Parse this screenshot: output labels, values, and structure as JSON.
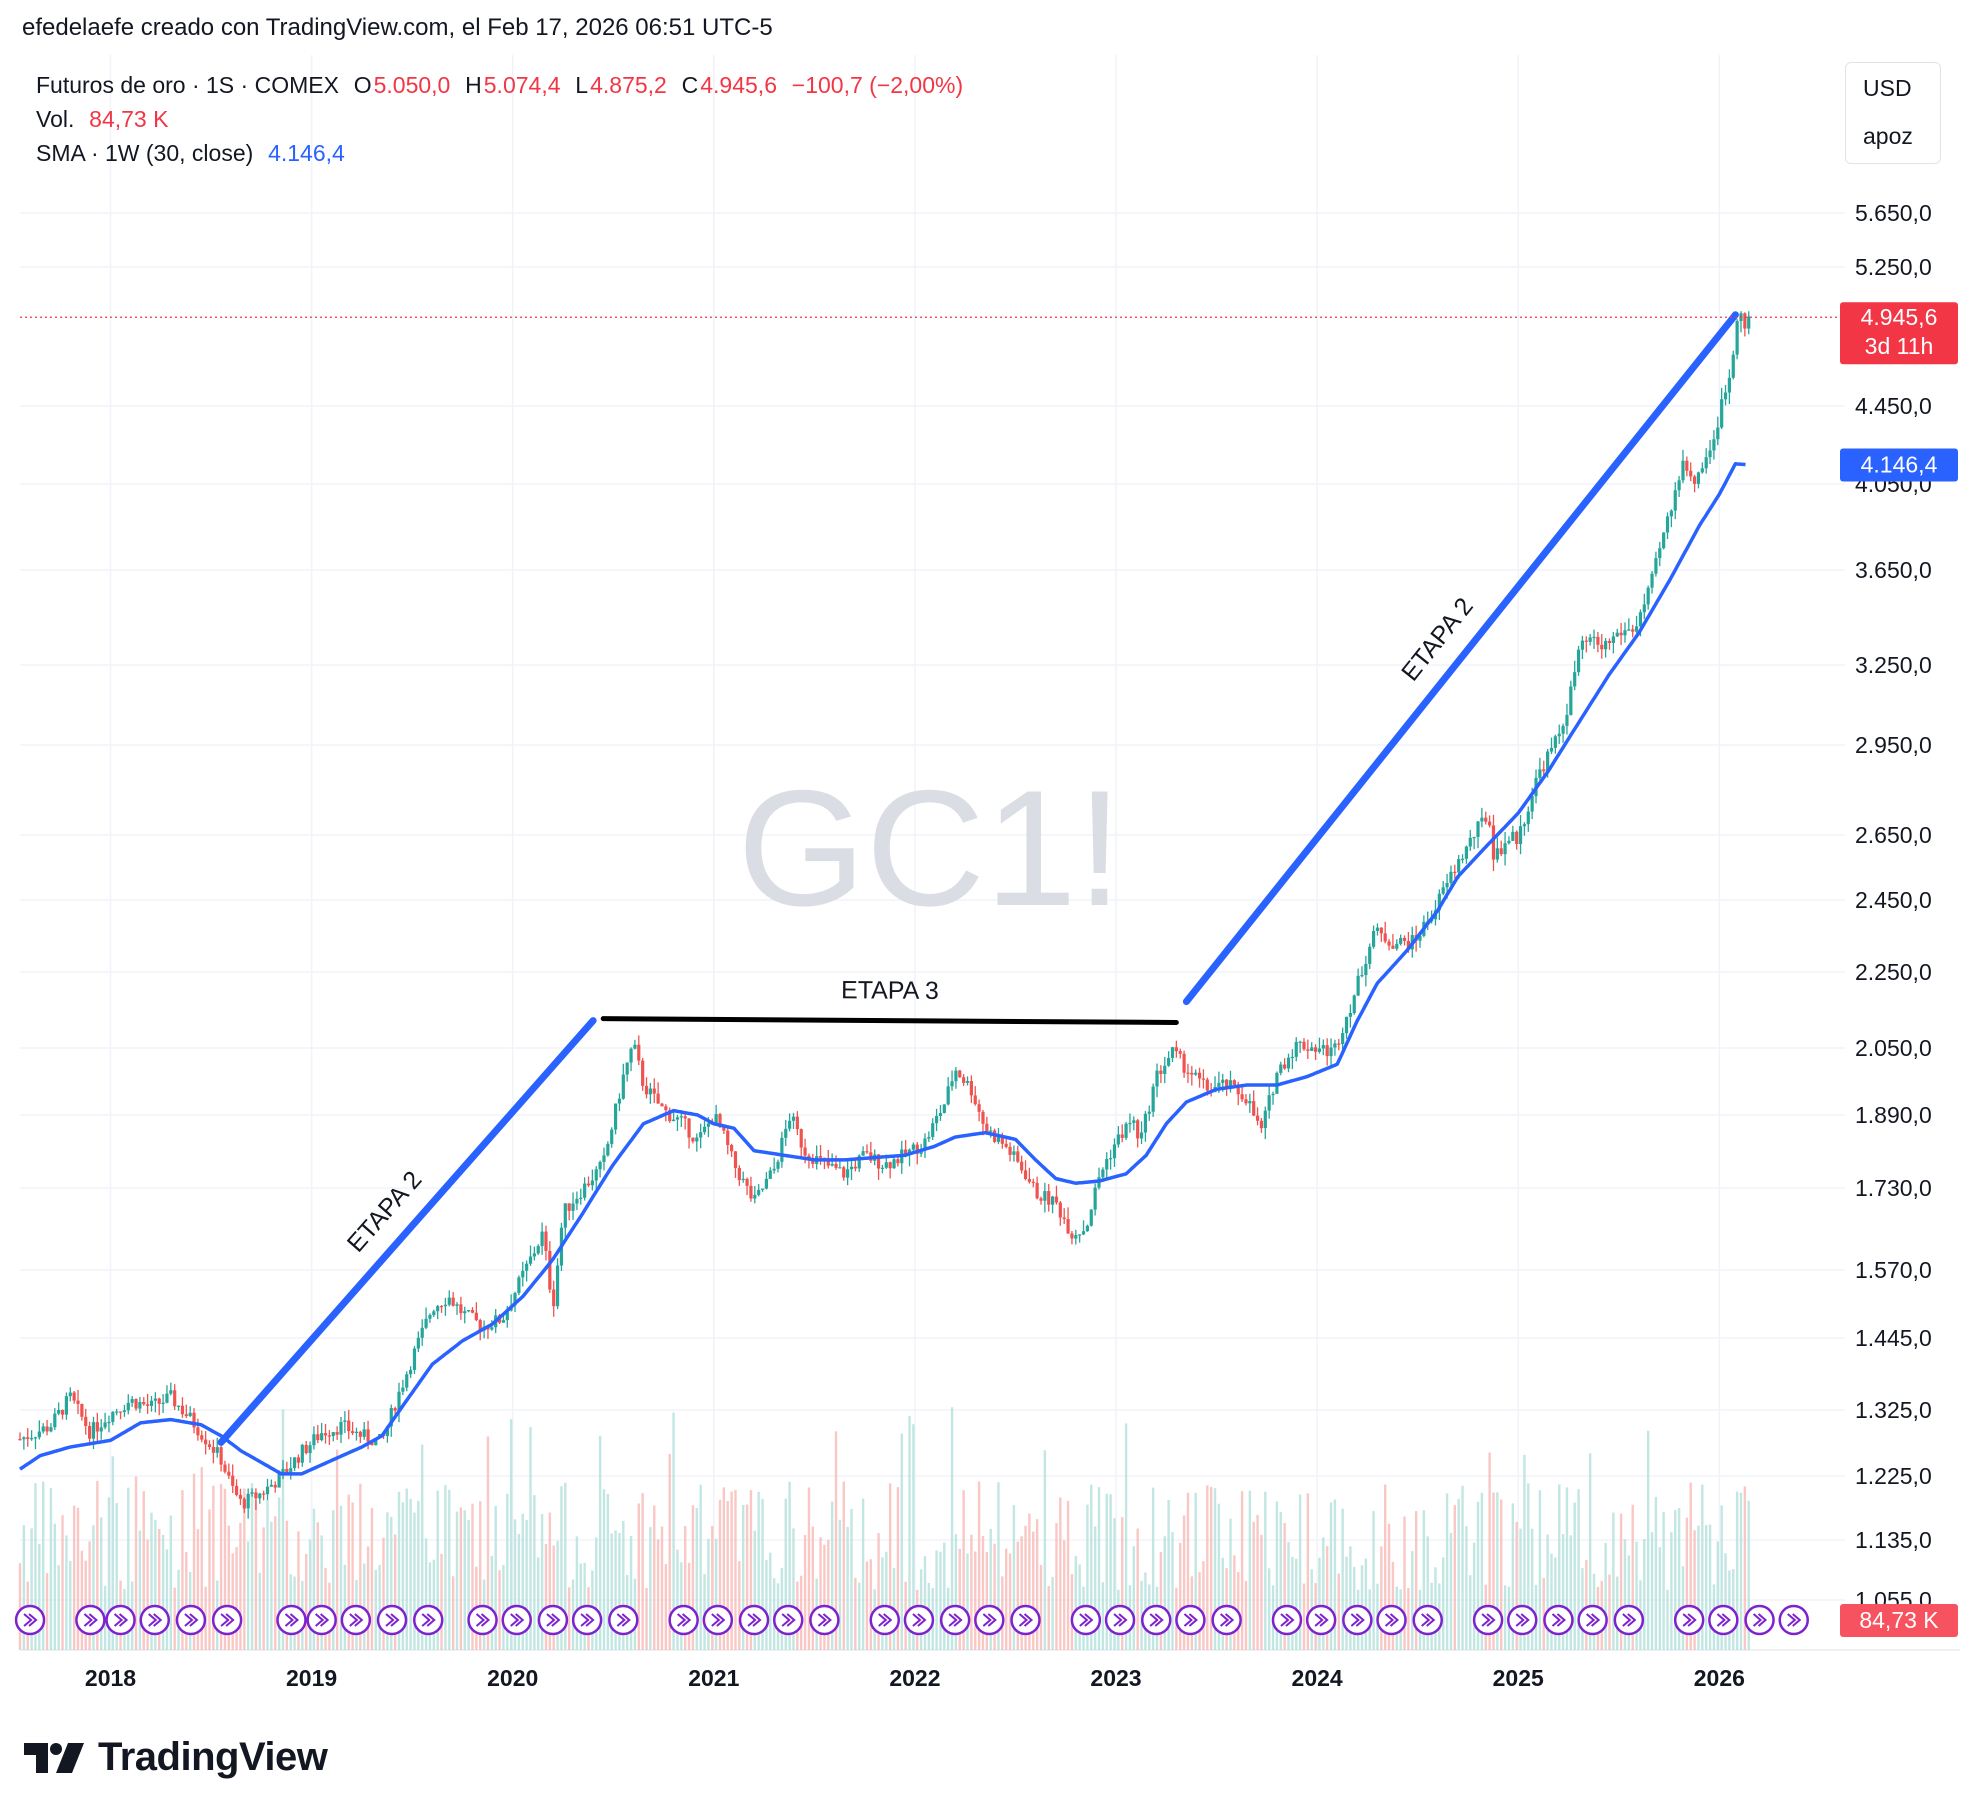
{
  "header": {
    "text": "efedelaefe creado con TradingView.com, el Feb 17, 2026 06:51 UTC-5"
  },
  "legend": {
    "symbol": "Futuros de oro · 1S · COMEX",
    "o_label": "O",
    "o_value": "5.050,0",
    "h_label": "H",
    "h_value": "5.074,4",
    "l_label": "L",
    "l_value": "4.875,2",
    "c_label": "C",
    "c_value": "4.945,6",
    "change": "−100,7 (−2,00%)",
    "vol_label": "Vol.",
    "vol_value": "84,73 K",
    "sma_label": "SMA · 1W (30, close)",
    "sma_value": "4.146,4"
  },
  "currency_box": {
    "currency": "USD",
    "mode": "apoz"
  },
  "watermark": "GC1!",
  "footer": {
    "brand": "TradingView"
  },
  "colors": {
    "up": "#26a69a",
    "down": "#ef5350",
    "sma": "#2962ff",
    "price_tag": "#f23645",
    "sma_tag": "#2962ff",
    "annotation_blue": "#2962ff",
    "annotation_black": "#000000",
    "event_icon": "#7e22ce"
  },
  "price_tag": {
    "value": "4.945,6",
    "countdown": "3d 11h"
  },
  "sma_tag": {
    "value": "4.146,4"
  },
  "vol_tag": {
    "value": "84,73 K"
  },
  "chart_data": {
    "type": "candlestick",
    "title": "Futuros de oro · 1S · COMEX",
    "y_scale": "log",
    "y_ticks": [
      "5.650,0",
      "5.250,0",
      "4.450,0",
      "4.050,0",
      "3.650,0",
      "3.250,0",
      "2.950,0",
      "2.650,0",
      "2.450,0",
      "2.250,0",
      "2.050,0",
      "1.890,0",
      "1.730,0",
      "1.570,0",
      "1.445,0",
      "1.325,0",
      "1.225,0",
      "1.135,0",
      "1.055,0"
    ],
    "y_tick_values": [
      5650,
      5250,
      4450,
      4050,
      3650,
      3250,
      2950,
      2650,
      2450,
      2250,
      2050,
      1890,
      1730,
      1570,
      1445,
      1325,
      1225,
      1135,
      1055
    ],
    "x_ticks": [
      "2018",
      "2019",
      "2020",
      "2021",
      "2022",
      "2023",
      "2024",
      "2025",
      "2026"
    ],
    "x_tick_years": [
      2018,
      2019,
      2020,
      2021,
      2022,
      2023,
      2024,
      2025,
      2026
    ],
    "x_range": [
      2017.55,
      2026.6
    ],
    "close_path": [
      [
        2017.55,
        1280
      ],
      [
        2017.7,
        1300
      ],
      [
        2017.8,
        1345
      ],
      [
        2017.9,
        1290
      ],
      [
        2018.0,
        1320
      ],
      [
        2018.1,
        1340
      ],
      [
        2018.2,
        1330
      ],
      [
        2018.3,
        1345
      ],
      [
        2018.4,
        1310
      ],
      [
        2018.5,
        1270
      ],
      [
        2018.55,
        1250
      ],
      [
        2018.6,
        1210
      ],
      [
        2018.65,
        1185
      ],
      [
        2018.75,
        1200
      ],
      [
        2018.85,
        1225
      ],
      [
        2018.95,
        1260
      ],
      [
        2019.05,
        1290
      ],
      [
        2019.15,
        1300
      ],
      [
        2019.25,
        1285
      ],
      [
        2019.35,
        1275
      ],
      [
        2019.42,
        1340
      ],
      [
        2019.5,
        1410
      ],
      [
        2019.6,
        1500
      ],
      [
        2019.68,
        1520
      ],
      [
        2019.75,
        1490
      ],
      [
        2019.85,
        1465
      ],
      [
        2019.95,
        1480
      ],
      [
        2020.05,
        1560
      ],
      [
        2020.15,
        1640
      ],
      [
        2020.2,
        1500
      ],
      [
        2020.25,
        1680
      ],
      [
        2020.35,
        1730
      ],
      [
        2020.45,
        1780
      ],
      [
        2020.55,
        1980
      ],
      [
        2020.6,
        2060
      ],
      [
        2020.65,
        1960
      ],
      [
        2020.75,
        1900
      ],
      [
        2020.85,
        1870
      ],
      [
        2020.92,
        1830
      ],
      [
        2021.0,
        1890
      ],
      [
        2021.05,
        1840
      ],
      [
        2021.1,
        1780
      ],
      [
        2021.2,
        1700
      ],
      [
        2021.3,
        1770
      ],
      [
        2021.38,
        1890
      ],
      [
        2021.45,
        1810
      ],
      [
        2021.55,
        1780
      ],
      [
        2021.65,
        1760
      ],
      [
        2021.75,
        1800
      ],
      [
        2021.85,
        1780
      ],
      [
        2021.95,
        1800
      ],
      [
        2022.05,
        1830
      ],
      [
        2022.15,
        1920
      ],
      [
        2022.2,
        2000
      ],
      [
        2022.28,
        1950
      ],
      [
        2022.35,
        1860
      ],
      [
        2022.45,
        1820
      ],
      [
        2022.55,
        1760
      ],
      [
        2022.6,
        1720
      ],
      [
        2022.7,
        1700
      ],
      [
        2022.78,
        1640
      ],
      [
        2022.85,
        1650
      ],
      [
        2022.92,
        1760
      ],
      [
        2023.0,
        1830
      ],
      [
        2023.08,
        1880
      ],
      [
        2023.12,
        1830
      ],
      [
        2023.2,
        1980
      ],
      [
        2023.28,
        2040
      ],
      [
        2023.35,
        2000
      ],
      [
        2023.45,
        1950
      ],
      [
        2023.55,
        1960
      ],
      [
        2023.65,
        1930
      ],
      [
        2023.72,
        1850
      ],
      [
        2023.8,
        1990
      ],
      [
        2023.9,
        2060
      ],
      [
        2024.0,
        2050
      ],
      [
        2024.08,
        2040
      ],
      [
        2024.18,
        2180
      ],
      [
        2024.28,
        2360
      ],
      [
        2024.38,
        2330
      ],
      [
        2024.48,
        2330
      ],
      [
        2024.58,
        2420
      ],
      [
        2024.68,
        2540
      ],
      [
        2024.78,
        2650
      ],
      [
        2024.85,
        2720
      ],
      [
        2024.88,
        2580
      ],
      [
        2024.95,
        2640
      ],
      [
        2025.0,
        2640
      ],
      [
        2025.1,
        2850
      ],
      [
        2025.2,
        2980
      ],
      [
        2025.25,
        3100
      ],
      [
        2025.3,
        3300
      ],
      [
        2025.35,
        3350
      ],
      [
        2025.42,
        3320
      ],
      [
        2025.5,
        3380
      ],
      [
        2025.58,
        3400
      ],
      [
        2025.65,
        3550
      ],
      [
        2025.72,
        3800
      ],
      [
        2025.78,
        4000
      ],
      [
        2025.82,
        4200
      ],
      [
        2025.86,
        4050
      ],
      [
        2025.92,
        4150
      ],
      [
        2025.98,
        4300
      ],
      [
        2026.02,
        4500
      ],
      [
        2026.06,
        4650
      ],
      [
        2026.1,
        5100
      ],
      [
        2026.12,
        4850
      ],
      [
        2026.15,
        4945
      ]
    ],
    "sma_path": [
      [
        2017.55,
        1235
      ],
      [
        2017.65,
        1255
      ],
      [
        2017.8,
        1268
      ],
      [
        2018.0,
        1278
      ],
      [
        2018.15,
        1305
      ],
      [
        2018.3,
        1310
      ],
      [
        2018.45,
        1302
      ],
      [
        2018.55,
        1285
      ],
      [
        2018.65,
        1262
      ],
      [
        2018.75,
        1245
      ],
      [
        2018.85,
        1228
      ],
      [
        2018.95,
        1228
      ],
      [
        2019.1,
        1248
      ],
      [
        2019.25,
        1268
      ],
      [
        2019.35,
        1285
      ],
      [
        2019.45,
        1330
      ],
      [
        2019.6,
        1400
      ],
      [
        2019.75,
        1440
      ],
      [
        2019.9,
        1470
      ],
      [
        2020.05,
        1520
      ],
      [
        2020.2,
        1590
      ],
      [
        2020.35,
        1680
      ],
      [
        2020.5,
        1780
      ],
      [
        2020.65,
        1870
      ],
      [
        2020.8,
        1900
      ],
      [
        2020.92,
        1890
      ],
      [
        2021.0,
        1870
      ],
      [
        2021.1,
        1860
      ],
      [
        2021.2,
        1810
      ],
      [
        2021.35,
        1800
      ],
      [
        2021.5,
        1790
      ],
      [
        2021.65,
        1790
      ],
      [
        2021.8,
        1795
      ],
      [
        2021.95,
        1800
      ],
      [
        2022.1,
        1820
      ],
      [
        2022.2,
        1840
      ],
      [
        2022.35,
        1850
      ],
      [
        2022.5,
        1835
      ],
      [
        2022.6,
        1790
      ],
      [
        2022.7,
        1750
      ],
      [
        2022.8,
        1740
      ],
      [
        2022.92,
        1745
      ],
      [
        2023.05,
        1760
      ],
      [
        2023.15,
        1800
      ],
      [
        2023.25,
        1870
      ],
      [
        2023.35,
        1920
      ],
      [
        2023.5,
        1950
      ],
      [
        2023.65,
        1960
      ],
      [
        2023.8,
        1960
      ],
      [
        2023.95,
        1980
      ],
      [
        2024.1,
        2010
      ],
      [
        2024.2,
        2120
      ],
      [
        2024.3,
        2220
      ],
      [
        2024.45,
        2310
      ],
      [
        2024.6,
        2420
      ],
      [
        2024.7,
        2520
      ],
      [
        2024.85,
        2620
      ],
      [
        2025.0,
        2720
      ],
      [
        2025.15,
        2860
      ],
      [
        2025.3,
        3030
      ],
      [
        2025.45,
        3210
      ],
      [
        2025.6,
        3380
      ],
      [
        2025.75,
        3600
      ],
      [
        2025.9,
        3850
      ],
      [
        2026.0,
        4000
      ],
      [
        2026.08,
        4150
      ],
      [
        2026.13,
        4146
      ]
    ]
  },
  "annotations": [
    {
      "label": "ETAPA 2",
      "color": "blue",
      "from": [
        2018.55,
        1275
      ],
      "to": [
        2020.4,
        2120
      ]
    },
    {
      "label": "ETAPA 3",
      "color": "black",
      "from": [
        2020.45,
        2125
      ],
      "to": [
        2023.3,
        2115
      ]
    },
    {
      "label": "ETAPA 2",
      "color": "blue",
      "from": [
        2023.35,
        2170
      ],
      "to": [
        2026.08,
        4960
      ]
    }
  ],
  "event_icon_groups": [
    [
      2017.6
    ],
    [
      2017.9,
      2018.05,
      2018.22,
      2018.4,
      2018.58
    ],
    [
      2018.9,
      2019.05,
      2019.22,
      2019.4,
      2019.58
    ],
    [
      2019.85,
      2020.02,
      2020.2,
      2020.37,
      2020.55
    ],
    [
      2020.85,
      2021.02,
      2021.2,
      2021.37,
      2021.55
    ],
    [
      2021.85,
      2022.02,
      2022.2,
      2022.37,
      2022.55
    ],
    [
      2022.85,
      2023.02,
      2023.2,
      2023.37,
      2023.55
    ],
    [
      2023.85,
      2024.02,
      2024.2,
      2024.37,
      2024.55
    ],
    [
      2024.85,
      2025.02,
      2025.2,
      2025.37,
      2025.55
    ],
    [
      2025.85,
      2026.02,
      2026.2,
      2026.37
    ]
  ]
}
